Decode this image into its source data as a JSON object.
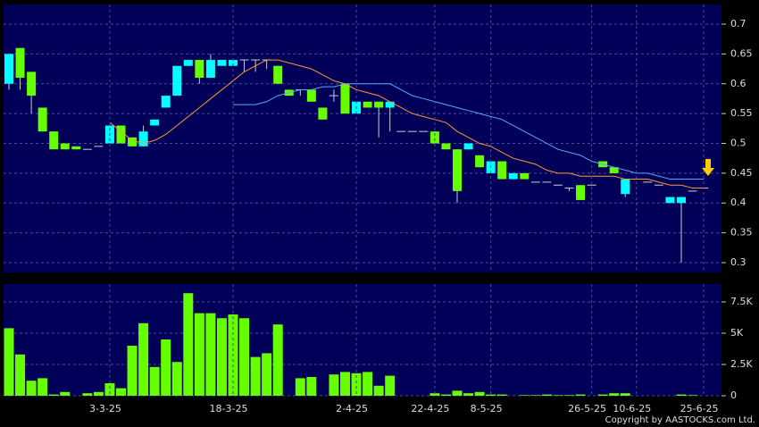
{
  "chart_data": [
    {
      "type": "candlestick",
      "up_color": "#00ffff",
      "down_color": "#66ff00",
      "grid": true,
      "open": [
        0.6,
        0.66,
        0.62,
        0.56,
        0.52,
        0.5,
        0.495,
        0.49,
        0.495,
        0.5,
        0.53,
        0.51,
        0.495,
        0.53,
        0.56,
        0.58,
        0.63,
        0.64,
        0.61,
        0.63,
        0.63,
        0.64,
        0.64,
        0.64,
        0.63,
        0.59,
        0.59,
        0.59,
        0.56,
        0.58,
        0.6,
        0.55,
        0.57,
        0.57,
        0.56,
        0.52,
        0.52,
        0.52,
        0.52,
        0.5,
        0.49,
        0.49,
        0.48,
        0.45,
        0.47,
        0.44,
        0.45,
        0.435,
        0.435,
        0.43,
        0.425,
        0.43,
        0.43,
        0.47,
        0.46,
        0.415,
        0.44,
        0.435,
        0.43,
        0.4,
        0.4,
        0.42,
        0.425
      ],
      "high": [
        0.65,
        0.66,
        0.62,
        0.56,
        0.52,
        0.5,
        0.495,
        0.49,
        0.495,
        0.53,
        0.53,
        0.51,
        0.53,
        0.54,
        0.58,
        0.63,
        0.64,
        0.64,
        0.65,
        0.64,
        0.64,
        0.64,
        0.64,
        0.64,
        0.63,
        0.59,
        0.59,
        0.59,
        0.56,
        0.59,
        0.6,
        0.57,
        0.57,
        0.57,
        0.57,
        0.52,
        0.52,
        0.52,
        0.52,
        0.5,
        0.49,
        0.5,
        0.48,
        0.47,
        0.47,
        0.45,
        0.45,
        0.435,
        0.435,
        0.43,
        0.425,
        0.43,
        0.43,
        0.47,
        0.46,
        0.44,
        0.44,
        0.435,
        0.43,
        0.41,
        0.41,
        0.42,
        0.425
      ],
      "low": [
        0.59,
        0.59,
        0.55,
        0.52,
        0.49,
        0.49,
        0.49,
        0.49,
        0.495,
        0.5,
        0.5,
        0.495,
        0.495,
        0.53,
        0.56,
        0.58,
        0.63,
        0.6,
        0.61,
        0.63,
        0.63,
        0.62,
        0.62,
        0.625,
        0.6,
        0.58,
        0.58,
        0.57,
        0.54,
        0.57,
        0.55,
        0.55,
        0.56,
        0.51,
        0.52,
        0.52,
        0.52,
        0.52,
        0.5,
        0.49,
        0.4,
        0.49,
        0.46,
        0.45,
        0.44,
        0.44,
        0.44,
        0.435,
        0.435,
        0.43,
        0.42,
        0.405,
        0.43,
        0.46,
        0.45,
        0.41,
        0.44,
        0.435,
        0.43,
        0.4,
        0.3,
        0.42,
        0.425
      ],
      "close": [
        0.65,
        0.61,
        0.58,
        0.52,
        0.49,
        0.49,
        0.49,
        0.49,
        0.495,
        0.53,
        0.5,
        0.495,
        0.52,
        0.54,
        0.58,
        0.63,
        0.64,
        0.61,
        0.64,
        0.64,
        0.64,
        0.64,
        0.64,
        0.64,
        0.6,
        0.58,
        0.59,
        0.57,
        0.54,
        0.58,
        0.55,
        0.57,
        0.56,
        0.56,
        0.57,
        0.52,
        0.52,
        0.52,
        0.5,
        0.49,
        0.42,
        0.5,
        0.46,
        0.47,
        0.44,
        0.45,
        0.44,
        0.435,
        0.435,
        0.43,
        0.425,
        0.405,
        0.43,
        0.46,
        0.45,
        0.44,
        0.44,
        0.435,
        0.43,
        0.41,
        0.41,
        0.42,
        0.425
      ],
      "series": [
        {
          "color": "#ff9933",
          "values": [
            null,
            null,
            null,
            null,
            null,
            null,
            null,
            null,
            null,
            0.535,
            0.52,
            0.505,
            0.5,
            0.505,
            0.515,
            0.53,
            0.545,
            0.56,
            0.575,
            0.59,
            0.605,
            0.62,
            0.63,
            0.64,
            0.64,
            0.635,
            0.63,
            0.625,
            0.615,
            0.605,
            0.6,
            0.59,
            0.585,
            0.58,
            0.57,
            0.56,
            0.55,
            0.545,
            0.54,
            0.535,
            0.52,
            0.51,
            0.5,
            0.495,
            0.485,
            0.475,
            0.47,
            0.465,
            0.455,
            0.45,
            0.45,
            0.445,
            0.445,
            0.445,
            0.445,
            0.44,
            0.44,
            0.44,
            0.435,
            0.43,
            0.43,
            0.425,
            0.425
          ]
        },
        {
          "color": "#55aaff",
          "values": [
            null,
            null,
            null,
            null,
            null,
            null,
            null,
            null,
            null,
            null,
            null,
            null,
            null,
            null,
            null,
            null,
            null,
            null,
            null,
            null,
            0.565,
            0.565,
            0.565,
            0.57,
            0.58,
            0.585,
            0.59,
            0.59,
            0.595,
            0.595,
            0.6,
            0.6,
            0.6,
            0.6,
            0.6,
            0.59,
            0.58,
            0.575,
            0.57,
            0.565,
            0.56,
            0.555,
            0.55,
            0.545,
            0.54,
            0.53,
            0.52,
            0.51,
            0.5,
            0.49,
            0.485,
            0.48,
            0.47,
            0.465,
            0.46,
            0.455,
            0.45,
            0.45,
            0.445,
            0.44,
            0.44,
            0.44,
            0.44
          ]
        }
      ],
      "ylim": [
        0.2835,
        0.733
      ],
      "yticks": [
        0.3,
        0.35,
        0.4,
        0.45,
        0.5,
        0.55,
        0.6,
        0.65,
        0.7
      ]
    },
    {
      "type": "bar",
      "color": "#66ff00",
      "grid": true,
      "categories": [
        null,
        null,
        null,
        null,
        null,
        null,
        null,
        null,
        null,
        "3-3-25",
        null,
        null,
        null,
        null,
        null,
        null,
        null,
        null,
        null,
        null,
        "18-3-25",
        null,
        null,
        null,
        null,
        null,
        null,
        null,
        null,
        null,
        null,
        "2-4-25",
        null,
        null,
        null,
        null,
        null,
        null,
        "22-4-25",
        null,
        null,
        null,
        null,
        "8-5-25",
        null,
        null,
        null,
        null,
        null,
        null,
        null,
        null,
        "26-5-25",
        null,
        null,
        null,
        "10-6-25",
        null,
        null,
        null,
        null,
        null,
        "25-6-25"
      ],
      "values": [
        5400,
        3300,
        1200,
        1400,
        100,
        300,
        0,
        200,
        300,
        1000,
        600,
        4000,
        5800,
        2300,
        4500,
        2700,
        8200,
        6600,
        6600,
        6200,
        6500,
        6200,
        3100,
        3400,
        5700,
        0,
        1400,
        1500,
        0,
        1700,
        1900,
        1800,
        1900,
        800,
        1600,
        0,
        0,
        0,
        200,
        100,
        400,
        200,
        300,
        100,
        100,
        0,
        50,
        50,
        100,
        50,
        50,
        100,
        0,
        100,
        200,
        200,
        0,
        0,
        0,
        0,
        100,
        50,
        0
      ],
      "ylim": [
        0,
        8930
      ],
      "yticks": [
        0,
        {
          "value": 2500,
          "label": "2.5K"
        },
        {
          "value": 5000,
          "label": "5K"
        },
        {
          "value": 7500,
          "label": "7.5K"
        }
      ]
    }
  ],
  "footer": "Copyright by AASTOCKS.com Ltd."
}
